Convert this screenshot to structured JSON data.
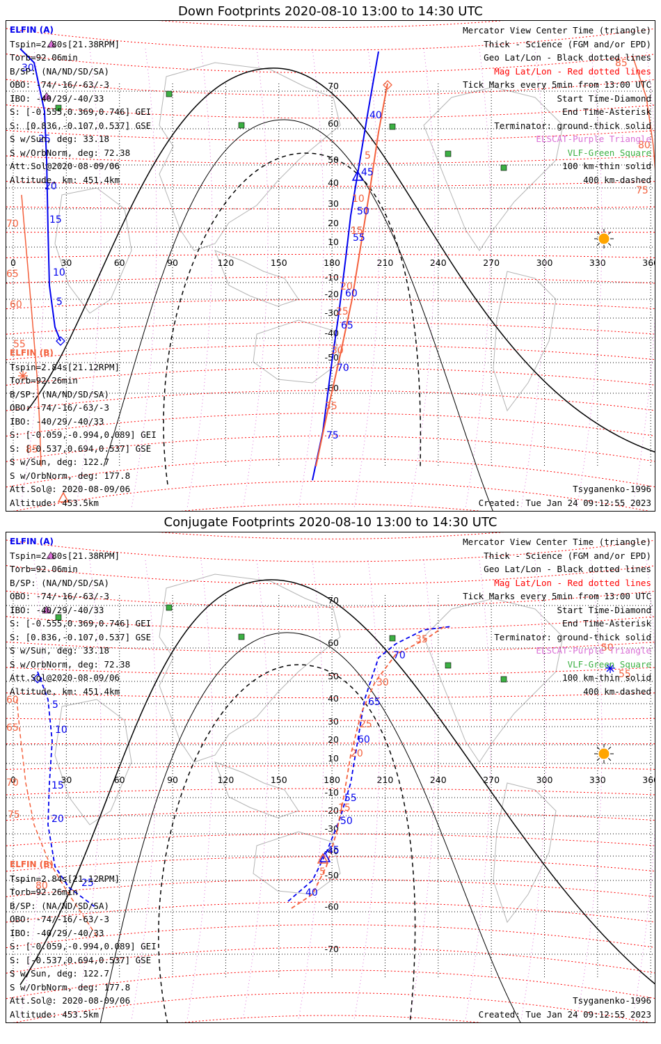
{
  "panels": [
    {
      "title": "Down Footprints 2020-08-10 13:00 to 14:30 UTC",
      "elfin_a": {
        "header": "ELFIN (A)",
        "lines": [
          "Tspin=2.80s[21.38RPM]",
          "Torb=92.06min",
          "B/SP: (NA/ND/SD/SA)",
          "OBO: -74/-16/-63/-3",
          "IBO: -40/29/-40/33",
          "S: [-0.555,0.369,0.746] GEI",
          "S: [0.836,-0.107,0.537] GSE",
          "S w/Sun, deg: 33.18",
          "S w/OrbNorm, deg: 72.38",
          "Att.Sol@2020-08-09/06",
          "Altitude, km: 451.4km"
        ]
      },
      "elfin_b": {
        "header": "ELFIN (B)",
        "lines": [
          "Tspin=2.84s[21.12RPM]",
          "Torb=92.26min",
          "B/SP: (NA/ND/SD/SA)",
          "OBO: -74/-16/-63/-3",
          "IBO: -40/29/-40/33",
          "S: [-0.059,-0.994,0.089] GEI",
          "S: [-0.537,0.694,0.537] GSE",
          "S w/Sun, deg: 122.7",
          "S w/OrbNorm, deg: 177.8",
          "Att.Sol@: 2020-08-09/06",
          "Altitude: 453.5km"
        ]
      },
      "model": "Tsyganenko-1996",
      "created": "Created: Tue Jan 24 09:12:55 2023"
    },
    {
      "title": "Conjugate Footprints 2020-08-10 13:00 to 14:30 UTC",
      "elfin_a": {
        "header": "ELFIN (A)",
        "lines": [
          "Tspin=2.80s[21.38RPM]",
          "Torb=92.06min",
          "B/SP: (NA/ND/SD/SA)",
          "OBO: -74/-16/-63/-3",
          "IBO: -40/29/-40/33",
          "S: [-0.555,0.369,0.746] GEI",
          "S: [0.836,-0.107,0.537] GSE",
          "S w/Sun, deg: 33.18",
          "S w/OrbNorm, deg: 72.38",
          "Att.Sol@2020-08-09/06",
          "Altitude, km: 451.4km"
        ]
      },
      "elfin_b": {
        "header": "ELFIN (B)",
        "lines": [
          "Tspin=2.84s[21.12RPM]",
          "Torb=92.26min",
          "B/SP: (NA/ND/SD/SA)",
          "OBO: -74/-16/-63/-3",
          "IBO: -40/29/-40/33",
          "S: [-0.059,-0.994,0.089] GEI",
          "S: [-0.537,0.694,0.537] GSE",
          "S w/Sun, deg: 122.7",
          "S w/OrbNorm, deg: 177.8",
          "Att.Sol@: 2020-08-09/06",
          "Altitude: 453.5km"
        ]
      },
      "model": "Tsyganenko-1996",
      "created": "Created: Tue Jan 24 09:12:55 2023"
    }
  ],
  "legend": [
    {
      "text": "Mercator View Center Time (triangle)",
      "color": "#000000"
    },
    {
      "text": "Thick - Science (FGM and/or EPD)",
      "color": "#000000"
    },
    {
      "text": "Geo Lat/Lon - Black dotted lines",
      "color": "#000000"
    },
    {
      "text": "Mag Lat/Lon - Red dotted lines",
      "color": "#ff0000"
    },
    {
      "text": "Tick Marks every 5min from 13:00 UTC",
      "color": "#000000"
    },
    {
      "text": "Start Time-Diamond",
      "color": "#000000"
    },
    {
      "text": "End Time-Asterisk",
      "color": "#000000"
    },
    {
      "text": "Terminator: ground-thick solid",
      "color": "#000000"
    },
    {
      "text": "ELSCAT-Purple Triangle",
      "color": "#da70d6"
    },
    {
      "text": "VLF-Green Square",
      "color": "#3cb043"
    },
    {
      "text": "100 km-thin solid",
      "color": "#000000"
    },
    {
      "text": "400 km-dashed",
      "color": "#000000"
    }
  ],
  "colors": {
    "elfin_a": "#0000ee",
    "elfin_b": "#f4603c",
    "mag_grid": "#ff0000",
    "geo_grid": "#000000",
    "elscat": "#da70d6",
    "vlf": "#3cb043",
    "sun": "#ffa500",
    "land": "#b4b4b4"
  },
  "chart_data": [
    {
      "type": "map",
      "title": "Down Footprints 2020-08-10 13:00 to 14:30 UTC",
      "projection": "Mercator",
      "xlim": [
        0,
        360
      ],
      "lon_ticks": [
        0,
        30,
        60,
        90,
        120,
        150,
        180,
        210,
        240,
        270,
        300,
        330,
        360
      ],
      "lat_ticks": [
        70,
        60,
        50,
        40,
        30,
        20,
        10,
        -10,
        -20,
        -30,
        -40,
        -50,
        -60
      ],
      "grid": true,
      "series": [
        {
          "name": "ELFIN (A)",
          "tick_labels": [
            "5",
            "10",
            "15",
            "20",
            "25",
            "30",
            "40",
            "45",
            "50",
            "55",
            "60",
            "65",
            "70",
            "75"
          ]
        },
        {
          "name": "ELFIN (B)",
          "tick_labels": [
            "5",
            "10",
            "15",
            "20",
            "25",
            "30",
            "35",
            "55",
            "60",
            "65",
            "70",
            "75",
            "85",
            "85"
          ]
        }
      ]
    },
    {
      "type": "map",
      "title": "Conjugate Footprints 2020-08-10 13:00 to 14:30 UTC",
      "projection": "Mercator",
      "xlim": [
        0,
        360
      ],
      "lon_ticks": [
        0,
        30,
        60,
        90,
        120,
        150,
        180,
        210,
        240,
        270,
        300,
        330,
        360
      ],
      "lat_ticks": [
        70,
        60,
        50,
        40,
        30,
        20,
        10,
        -10,
        -20,
        -30,
        -40,
        -50,
        -60,
        -70
      ],
      "grid": true,
      "series": [
        {
          "name": "ELFIN (A)",
          "tick_labels": [
            "5",
            "10",
            "15",
            "20",
            "25",
            "40",
            "45",
            "50",
            "55",
            "60",
            "65",
            "70"
          ]
        },
        {
          "name": "ELFIN (B)",
          "tick_labels": [
            "5",
            "15",
            "20",
            "25",
            "30",
            "35",
            "50",
            "55",
            "60",
            "65",
            "70",
            "75",
            "80"
          ]
        }
      ]
    }
  ]
}
